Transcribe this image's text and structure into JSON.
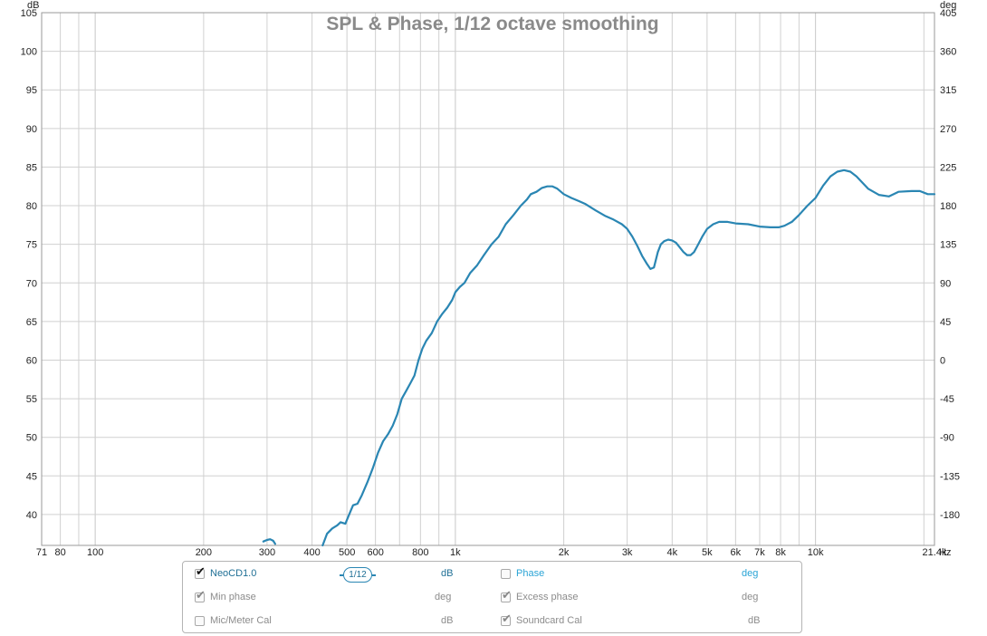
{
  "chart_data": {
    "type": "line",
    "title": "SPL & Phase, 1/12 octave smoothing",
    "left_unit": "dB",
    "right_unit": "deg",
    "x_unit": "Hz",
    "x_scale": "log",
    "xlim": [
      71,
      21400
    ],
    "ylim": [
      36,
      105
    ],
    "y2lim": [
      -216,
      405
    ],
    "grid": true,
    "x_ticks": [
      "71",
      "80",
      "100",
      "200",
      "300",
      "400",
      "500",
      "600",
      "800",
      "1k",
      "2k",
      "3k",
      "4k",
      "5k",
      "6k",
      "7k",
      "8k",
      "10k",
      "21.4k"
    ],
    "x_tick_values": [
      71,
      80,
      100,
      200,
      300,
      400,
      500,
      600,
      800,
      1000,
      2000,
      3000,
      4000,
      5000,
      6000,
      7000,
      8000,
      10000,
      21400
    ],
    "y_ticks": [
      "40",
      "45",
      "50",
      "55",
      "60",
      "65",
      "70",
      "75",
      "80",
      "85",
      "90",
      "95",
      "100",
      "105"
    ],
    "y_tick_values": [
      40,
      45,
      50,
      55,
      60,
      65,
      70,
      75,
      80,
      85,
      90,
      95,
      100,
      105
    ],
    "y2_ticks": [
      "-180",
      "-135",
      "-90",
      "-45",
      "0",
      "45",
      "90",
      "135",
      "180",
      "225",
      "270",
      "315",
      "360",
      "405"
    ],
    "y2_tick_values": [
      -180,
      -135,
      -90,
      -45,
      0,
      45,
      90,
      135,
      180,
      225,
      270,
      315,
      360,
      405
    ],
    "series": [
      {
        "name": "NeoCD1.0",
        "color": "#2a86b3",
        "segments": [
          [
            [
              293,
              36.5
            ],
            [
              300,
              36.7
            ],
            [
              306,
              36.8
            ],
            [
              312,
              36.6
            ],
            [
              316,
              36.2
            ]
          ],
          [
            [
              428,
              36.0
            ],
            [
              440,
              37.5
            ],
            [
              455,
              38.2
            ],
            [
              470,
              38.6
            ],
            [
              480,
              39.0
            ],
            [
              495,
              38.8
            ],
            [
              505,
              39.8
            ],
            [
              520,
              41.2
            ],
            [
              535,
              41.4
            ],
            [
              550,
              42.5
            ],
            [
              570,
              44.2
            ],
            [
              590,
              46.0
            ],
            [
              610,
              48.0
            ],
            [
              630,
              49.5
            ],
            [
              650,
              50.4
            ],
            [
              670,
              51.5
            ],
            [
              690,
              53.0
            ],
            [
              710,
              55.0
            ],
            [
              730,
              56.0
            ],
            [
              750,
              57.0
            ],
            [
              770,
              58.0
            ],
            [
              790,
              60.0
            ],
            [
              810,
              61.5
            ],
            [
              830,
              62.5
            ],
            [
              860,
              63.5
            ],
            [
              890,
              65.0
            ],
            [
              920,
              66.0
            ],
            [
              950,
              66.8
            ],
            [
              980,
              67.8
            ],
            [
              1000,
              68.8
            ],
            [
              1030,
              69.5
            ],
            [
              1060,
              70.0
            ],
            [
              1100,
              71.3
            ],
            [
              1150,
              72.3
            ],
            [
              1200,
              73.6
            ],
            [
              1260,
              75.0
            ],
            [
              1320,
              76.0
            ],
            [
              1380,
              77.6
            ],
            [
              1450,
              78.8
            ],
            [
              1520,
              80.0
            ],
            [
              1580,
              80.8
            ],
            [
              1620,
              81.5
            ],
            [
              1680,
              81.8
            ],
            [
              1740,
              82.3
            ],
            [
              1800,
              82.5
            ],
            [
              1860,
              82.5
            ],
            [
              1920,
              82.2
            ],
            [
              2000,
              81.5
            ],
            [
              2100,
              81.0
            ],
            [
              2200,
              80.6
            ],
            [
              2300,
              80.2
            ],
            [
              2450,
              79.4
            ],
            [
              2600,
              78.7
            ],
            [
              2750,
              78.2
            ],
            [
              2900,
              77.6
            ],
            [
              3000,
              77.0
            ],
            [
              3100,
              76.0
            ],
            [
              3200,
              74.8
            ],
            [
              3300,
              73.5
            ],
            [
              3400,
              72.5
            ],
            [
              3480,
              71.8
            ],
            [
              3560,
              72.0
            ],
            [
              3650,
              74.0
            ],
            [
              3720,
              75.0
            ],
            [
              3800,
              75.4
            ],
            [
              3900,
              75.6
            ],
            [
              4000,
              75.5
            ],
            [
              4100,
              75.2
            ],
            [
              4200,
              74.6
            ],
            [
              4300,
              74.0
            ],
            [
              4400,
              73.6
            ],
            [
              4500,
              73.6
            ],
            [
              4600,
              74.0
            ],
            [
              4700,
              74.8
            ],
            [
              4850,
              76.0
            ],
            [
              5000,
              77.0
            ],
            [
              5200,
              77.6
            ],
            [
              5400,
              77.9
            ],
            [
              5700,
              77.9
            ],
            [
              6000,
              77.7
            ],
            [
              6500,
              77.6
            ],
            [
              7000,
              77.3
            ],
            [
              7500,
              77.2
            ],
            [
              7900,
              77.2
            ],
            [
              8200,
              77.4
            ],
            [
              8600,
              77.9
            ],
            [
              9000,
              78.8
            ],
            [
              9500,
              80.0
            ],
            [
              10000,
              81.0
            ],
            [
              10500,
              82.6
            ],
            [
              11000,
              83.8
            ],
            [
              11500,
              84.4
            ],
            [
              12000,
              84.6
            ],
            [
              12500,
              84.4
            ],
            [
              13000,
              83.8
            ],
            [
              14000,
              82.2
            ],
            [
              15000,
              81.4
            ],
            [
              16000,
              81.2
            ],
            [
              17000,
              81.8
            ],
            [
              18500,
              81.9
            ],
            [
              19500,
              81.9
            ],
            [
              20500,
              81.5
            ],
            [
              21400,
              81.5
            ]
          ]
        ]
      }
    ]
  },
  "legend": {
    "rows": [
      {
        "left_label": "NeoCD1.0",
        "left_checked": true,
        "left_unit": "dB",
        "right_label": "Phase",
        "right_checked": false,
        "right_unit": "deg"
      },
      {
        "left_label": "Min phase",
        "left_checked": true,
        "left_unit": "deg",
        "right_label": "Excess phase",
        "right_checked": true,
        "right_unit": "deg"
      },
      {
        "left_label": "Mic/Meter Cal",
        "left_checked": false,
        "left_unit": "dB",
        "right_label": "Soundcard Cal",
        "right_checked": true,
        "right_unit": "dB"
      }
    ],
    "smoothing_label": "1/12"
  },
  "colors": {
    "accent": "#2a86b3",
    "phase_label": "#2aa4d6",
    "grid": "#cccccc",
    "frame": "#9a9a9a",
    "title": "#8a8a8a"
  }
}
